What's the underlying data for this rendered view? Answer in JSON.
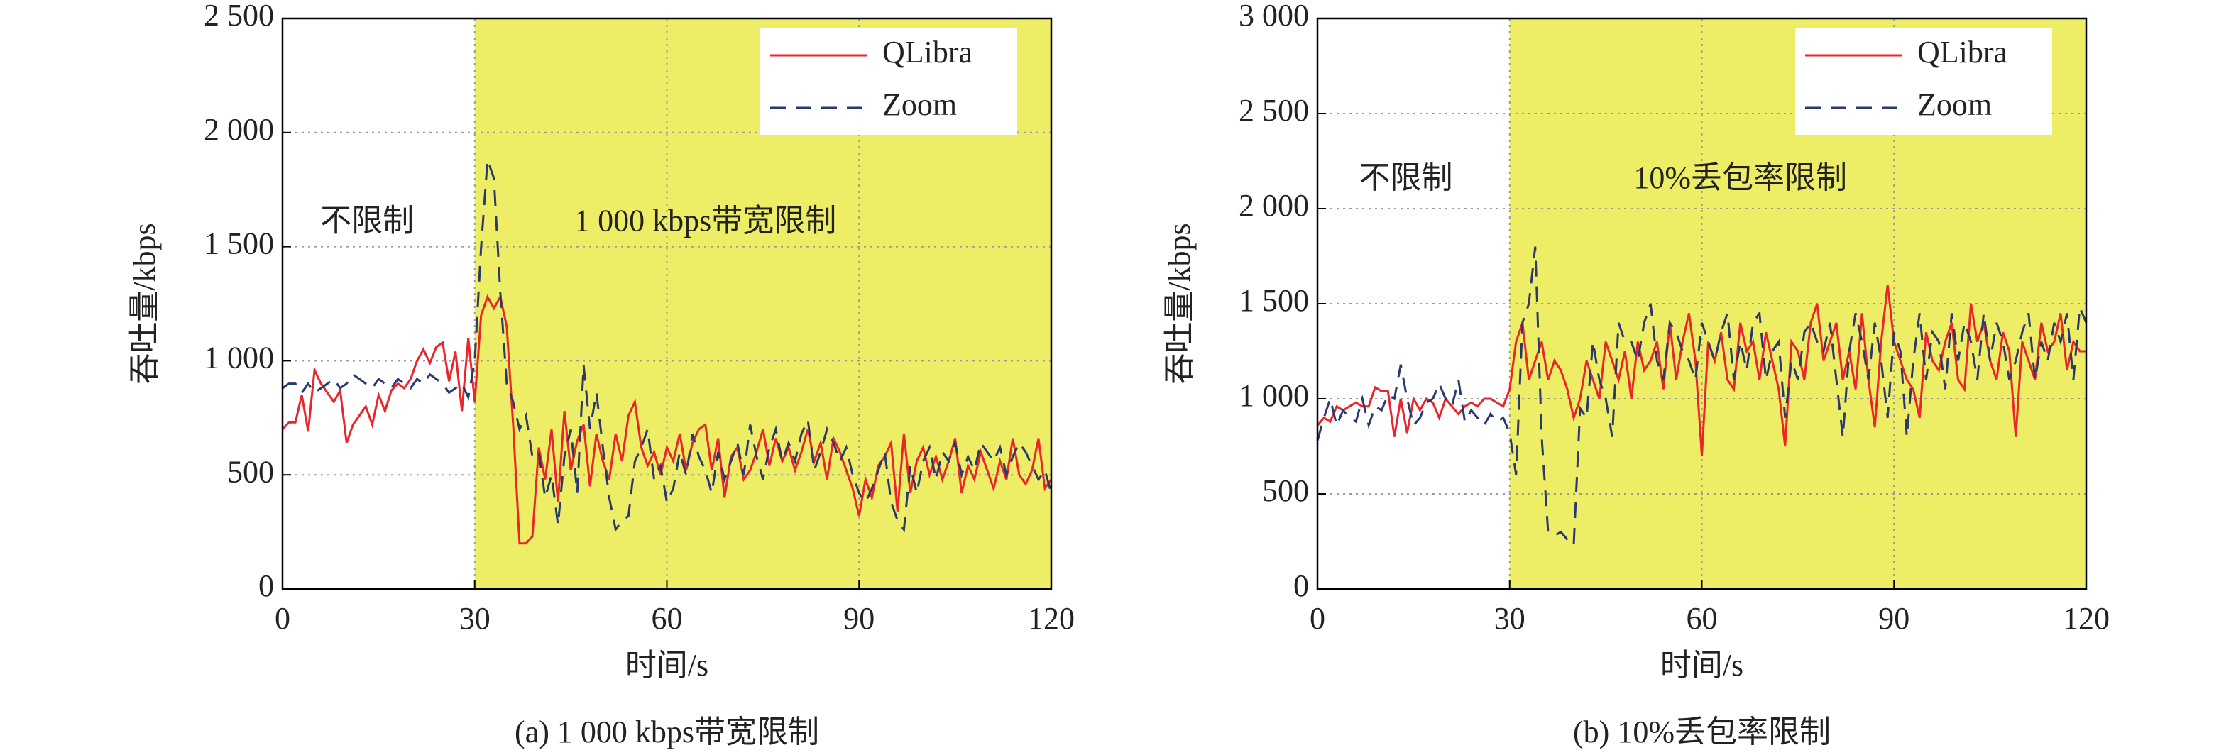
{
  "chart_data": [
    {
      "type": "line",
      "caption": "(a)  1 000 kbps带宽限制",
      "xlabel": "时间/s",
      "ylabel": "吞吐量/kbps",
      "annotations": [
        "不限制",
        "1 000 kbps带宽限制"
      ],
      "legend": "upper right",
      "grid": true,
      "shaded_region": [
        30,
        120
      ],
      "shade_color": "#eeee66",
      "xlim": [
        0,
        120
      ],
      "xticks": [
        0,
        30,
        60,
        90,
        120
      ],
      "ylim": [
        0,
        2500
      ],
      "yticks": [
        0,
        500,
        {
          "value": 1000,
          "label": "1 000"
        },
        {
          "value": 1500,
          "label": "1 500"
        },
        {
          "value": 2000,
          "label": "2 000"
        },
        {
          "value": 2500,
          "label": "2 500"
        }
      ],
      "x": [
        0,
        1,
        2,
        3,
        4,
        5,
        6,
        7,
        8,
        9,
        10,
        11,
        12,
        13,
        14,
        15,
        16,
        17,
        18,
        19,
        20,
        21,
        22,
        23,
        24,
        25,
        26,
        27,
        28,
        29,
        30,
        31,
        32,
        33,
        34,
        35,
        36,
        37,
        38,
        39,
        40,
        41,
        42,
        43,
        44,
        45,
        46,
        47,
        48,
        49,
        50,
        51,
        52,
        53,
        54,
        55,
        56,
        57,
        58,
        59,
        60,
        61,
        62,
        63,
        64,
        65,
        66,
        67,
        68,
        69,
        70,
        71,
        72,
        73,
        74,
        75,
        76,
        77,
        78,
        79,
        80,
        81,
        82,
        83,
        84,
        85,
        86,
        87,
        88,
        89,
        90,
        91,
        92,
        93,
        94,
        95,
        96,
        97,
        98,
        99,
        100,
        101,
        102,
        103,
        104,
        105,
        106,
        107,
        108,
        109,
        110,
        111,
        112,
        113,
        114,
        115,
        116,
        117,
        118,
        119,
        120
      ],
      "series": [
        {
          "name": "QLibra",
          "color": "#e8262b",
          "dash": false,
          "values": [
            700,
            730,
            730,
            850,
            690,
            960,
            900,
            860,
            820,
            870,
            640,
            720,
            760,
            800,
            720,
            850,
            780,
            870,
            900,
            880,
            920,
            1000,
            1050,
            990,
            1060,
            1080,
            910,
            1040,
            780,
            1100,
            820,
            1200,
            1280,
            1230,
            1280,
            1150,
            720,
            200,
            200,
            230,
            620,
            480,
            700,
            380,
            780,
            520,
            650,
            720,
            450,
            680,
            560,
            480,
            680,
            560,
            760,
            820,
            620,
            540,
            600,
            500,
            620,
            560,
            680,
            520,
            640,
            700,
            720,
            520,
            660,
            400,
            580,
            620,
            480,
            520,
            600,
            700,
            540,
            660,
            560,
            620,
            520,
            600,
            700,
            560,
            640,
            480,
            660,
            600,
            520,
            440,
            320,
            480,
            400,
            540,
            580,
            640,
            340,
            680,
            420,
            560,
            620,
            500,
            580,
            480,
            560,
            660,
            420,
            540,
            480,
            600,
            520,
            440,
            560,
            480,
            660,
            500,
            460,
            520,
            660,
            440,
            480
          ]
        },
        {
          "name": "Zoom",
          "color": "#2b3a6e",
          "dash": true,
          "values": [
            880,
            900,
            900,
            860,
            900,
            860,
            880,
            900,
            920,
            880,
            900,
            940,
            920,
            900,
            880,
            920,
            900,
            880,
            920,
            900,
            880,
            920,
            900,
            940,
            920,
            900,
            860,
            880,
            900,
            840,
            1000,
            1500,
            1880,
            1800,
            1300,
            900,
            820,
            700,
            760,
            580,
            600,
            400,
            500,
            280,
            580,
            700,
            420,
            980,
            700,
            860,
            620,
            400,
            260,
            300,
            320,
            560,
            620,
            700,
            480,
            540,
            380,
            440,
            600,
            500,
            680,
            580,
            520,
            420,
            600,
            480,
            560,
            640,
            500,
            720,
            580,
            480,
            620,
            700,
            560,
            640,
            560,
            680,
            740,
            520,
            600,
            700,
            640,
            560,
            620,
            500,
            420,
            380,
            440,
            520,
            600,
            380,
            300,
            260,
            540,
            420,
            560,
            620,
            480,
            600,
            560,
            640,
            500,
            580,
            520,
            640,
            600,
            560,
            620,
            500,
            580,
            640,
            600,
            540,
            480,
            520,
            420
          ]
        }
      ]
    },
    {
      "type": "line",
      "caption": "(b)  10%丢包率限制",
      "xlabel": "时间/s",
      "ylabel": "吞吐量/kbps",
      "annotations": [
        "不限制",
        "10%丢包率限制"
      ],
      "legend": "upper right",
      "grid": true,
      "shaded_region": [
        30,
        120
      ],
      "shade_color": "#eeee66",
      "xlim": [
        0,
        120
      ],
      "xticks": [
        0,
        30,
        60,
        90,
        120
      ],
      "ylim": [
        0,
        3000
      ],
      "yticks": [
        0,
        500,
        {
          "value": 1000,
          "label": "1 000"
        },
        {
          "value": 1500,
          "label": "1 500"
        },
        {
          "value": 2000,
          "label": "2 000"
        },
        {
          "value": 2500,
          "label": "2 500"
        },
        {
          "value": 3000,
          "label": "3 000"
        }
      ],
      "x": [
        0,
        1,
        2,
        3,
        4,
        5,
        6,
        7,
        8,
        9,
        10,
        11,
        12,
        13,
        14,
        15,
        16,
        17,
        18,
        19,
        20,
        21,
        22,
        23,
        24,
        25,
        26,
        27,
        28,
        29,
        30,
        31,
        32,
        33,
        34,
        35,
        36,
        37,
        38,
        39,
        40,
        41,
        42,
        43,
        44,
        45,
        46,
        47,
        48,
        49,
        50,
        51,
        52,
        53,
        54,
        55,
        56,
        57,
        58,
        59,
        60,
        61,
        62,
        63,
        64,
        65,
        66,
        67,
        68,
        69,
        70,
        71,
        72,
        73,
        74,
        75,
        76,
        77,
        78,
        79,
        80,
        81,
        82,
        83,
        84,
        85,
        86,
        87,
        88,
        89,
        90,
        91,
        92,
        93,
        94,
        95,
        96,
        97,
        98,
        99,
        100,
        101,
        102,
        103,
        104,
        105,
        106,
        107,
        108,
        109,
        110,
        111,
        112,
        113,
        114,
        115,
        116,
        117,
        118,
        119,
        120
      ],
      "series": [
        {
          "name": "QLibra",
          "color": "#e8262b",
          "dash": false,
          "values": [
            860,
            900,
            880,
            960,
            940,
            960,
            980,
            960,
            960,
            1060,
            1040,
            1040,
            800,
            1000,
            820,
            1000,
            940,
            1000,
            980,
            900,
            1000,
            960,
            920,
            960,
            980,
            960,
            1000,
            1000,
            980,
            960,
            1050,
            1300,
            1400,
            1100,
            1200,
            1300,
            1100,
            1200,
            1150,
            1050,
            900,
            1000,
            1200,
            1100,
            1000,
            1300,
            1200,
            1100,
            1250,
            1000,
            1300,
            1150,
            1200,
            1300,
            1050,
            1400,
            1100,
            1300,
            1450,
            1200,
            700,
            1300,
            1200,
            1350,
            1100,
            1050,
            1400,
            1250,
            1300,
            1100,
            1350,
            1200,
            1050,
            750,
            1300,
            1250,
            1100,
            1400,
            1500,
            1200,
            1300,
            1400,
            1100,
            1250,
            1050,
            1450,
            1100,
            850,
            1300,
            1600,
            1300,
            1200,
            1100,
            1050,
            900,
            1350,
            1200,
            1150,
            1300,
            1400,
            1100,
            1050,
            1500,
            1300,
            1400,
            1200,
            1100,
            1350,
            1250,
            800,
            1300,
            1200,
            1100,
            1400,
            1250,
            1300,
            1450,
            1150,
            1300,
            1250,
            1250
          ]
        },
        {
          "name": "Zoom",
          "color": "#2b3a6e",
          "dash": true,
          "values": [
            780,
            900,
            1000,
            860,
            940,
            900,
            880,
            1000,
            860,
            960,
            940,
            1020,
            1000,
            1180,
            1000,
            860,
            900,
            980,
            1000,
            1080,
            1000,
            960,
            1100,
            880,
            940,
            900,
            860,
            920,
            880,
            900,
            820,
            600,
            1400,
            1500,
            1800,
            800,
            300,
            280,
            300,
            260,
            230,
            950,
            900,
            1300,
            1100,
            1000,
            800,
            1400,
            1300,
            1300,
            1200,
            1400,
            1500,
            1200,
            1100,
            1400,
            1350,
            1250,
            1200,
            1100,
            1400,
            1300,
            1200,
            1350,
            1450,
            1100,
            1300,
            1150,
            1400,
            1450,
            1100,
            1250,
            1300,
            900,
            1200,
            1100,
            1350,
            1400,
            1300,
            1250,
            1400,
            1100,
            800,
            1250,
            1450,
            1300,
            1100,
            1400,
            1200,
            900,
            1350,
            1250,
            800,
            1200,
            1450,
            1100,
            1350,
            1300,
            1050,
            1450,
            1200,
            1400,
            1300,
            1100,
            1450,
            1200,
            1400,
            1300,
            1100,
            1200,
            1350,
            1450,
            1100,
            1300,
            1200,
            1400,
            1300,
            1450,
            1100,
            1480,
            1400
          ]
        }
      ]
    }
  ]
}
